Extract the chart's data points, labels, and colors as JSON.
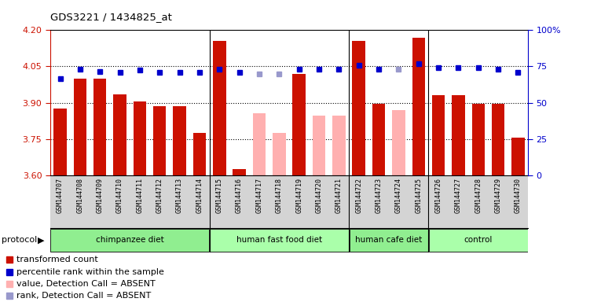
{
  "title": "GDS3221 / 1434825_at",
  "samples": [
    "GSM144707",
    "GSM144708",
    "GSM144709",
    "GSM144710",
    "GSM144711",
    "GSM144712",
    "GSM144713",
    "GSM144714",
    "GSM144715",
    "GSM144716",
    "GSM144717",
    "GSM144718",
    "GSM144719",
    "GSM144720",
    "GSM144721",
    "GSM144722",
    "GSM144723",
    "GSM144724",
    "GSM144725",
    "GSM144726",
    "GSM144727",
    "GSM144728",
    "GSM144729",
    "GSM144730"
  ],
  "bar_values": [
    3.875,
    4.0,
    4.0,
    3.935,
    3.905,
    3.885,
    3.885,
    3.775,
    4.155,
    3.625,
    3.855,
    3.775,
    4.02,
    3.845,
    3.845,
    4.155,
    3.895,
    3.87,
    4.17,
    3.93,
    3.93,
    3.895,
    3.895,
    3.755
  ],
  "bar_absent": [
    false,
    false,
    false,
    false,
    false,
    false,
    false,
    false,
    false,
    false,
    true,
    true,
    false,
    true,
    true,
    false,
    false,
    true,
    false,
    false,
    false,
    false,
    false,
    false
  ],
  "rank_values": [
    4.0,
    4.04,
    4.03,
    4.025,
    4.035,
    4.025,
    4.025,
    4.025,
    4.04,
    4.025,
    4.02,
    4.02,
    4.04,
    4.04,
    4.04,
    4.055,
    4.04,
    4.04,
    4.06,
    4.045,
    4.045,
    4.045,
    4.04,
    4.025
  ],
  "rank_absent": [
    false,
    false,
    false,
    false,
    false,
    false,
    false,
    false,
    false,
    false,
    true,
    true,
    false,
    false,
    false,
    false,
    false,
    true,
    false,
    false,
    false,
    false,
    false,
    false
  ],
  "ylim_min": 3.6,
  "ylim_max": 4.2,
  "yticks": [
    3.6,
    3.75,
    3.9,
    4.05,
    4.2
  ],
  "right_yticks": [
    0,
    25,
    50,
    75,
    100
  ],
  "group_info": [
    {
      "label": "chimpanzee diet",
      "start": 0,
      "end": 7
    },
    {
      "label": "human fast food diet",
      "start": 8,
      "end": 14
    },
    {
      "label": "human cafe diet",
      "start": 15,
      "end": 18
    },
    {
      "label": "control",
      "start": 19,
      "end": 23
    }
  ],
  "group_boundaries": [
    8,
    15,
    19
  ],
  "bar_color_present": "#cc1100",
  "bar_color_absent": "#ffb0b0",
  "rank_color_present": "#0000cc",
  "rank_color_absent": "#9999cc",
  "tick_label_bg": "#d4d4d4",
  "green_color": "#7ddd7d",
  "green_color2": "#aaffaa"
}
